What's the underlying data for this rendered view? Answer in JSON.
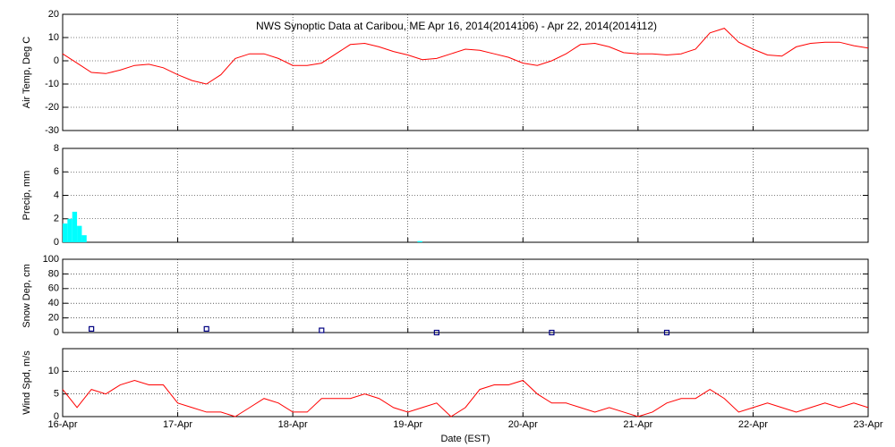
{
  "chart_data": [
    {
      "type": "line",
      "title": "NWS Synoptic Data at Caribou, ME   Apr 16, 2014(2014106) - Apr 22, 2014(2014112)",
      "ylabel": "Air Temp, Deg C",
      "xlim": [
        0,
        168
      ],
      "xticks": [
        0,
        24,
        48,
        72,
        96,
        120,
        144,
        168
      ],
      "ylim": [
        -30,
        20
      ],
      "yticks": [
        -30,
        -20,
        -10,
        0,
        10,
        20
      ],
      "grid": true,
      "series": [
        {
          "color": "#ff0000",
          "x": [
            0,
            3,
            6,
            9,
            12,
            15,
            18,
            21,
            24,
            27,
            30,
            33,
            36,
            39,
            42,
            45,
            48,
            51,
            54,
            57,
            60,
            63,
            66,
            69,
            72,
            75,
            78,
            81,
            84,
            87,
            90,
            93,
            96,
            99,
            102,
            105,
            108,
            111,
            114,
            117,
            120,
            123,
            126,
            129,
            132,
            135,
            138,
            141,
            144,
            147,
            150,
            153,
            156,
            159,
            162,
            165,
            168
          ],
          "values": [
            3,
            -1,
            -5,
            -5.5,
            -4,
            -2,
            -1.5,
            -3,
            -6,
            -8.5,
            -10,
            -6,
            1,
            3,
            3,
            1,
            -2,
            -2,
            -1,
            3,
            7,
            7.5,
            6,
            4,
            2.5,
            0.5,
            1,
            3,
            5,
            4.5,
            3,
            1.5,
            -1,
            -2,
            0,
            3,
            7,
            7.5,
            6,
            3.5,
            3,
            3,
            2.5,
            3,
            5,
            12,
            14,
            8,
            5,
            2.5,
            2,
            6,
            7.5,
            8,
            8,
            6.5,
            5.5
          ]
        }
      ]
    },
    {
      "type": "bar",
      "ylabel": "Precip, mm",
      "xlim": [
        0,
        168
      ],
      "xticks": [
        0,
        24,
        48,
        72,
        96,
        120,
        144,
        168
      ],
      "ylim": [
        0,
        8
      ],
      "yticks": [
        0,
        2,
        4,
        6,
        8
      ],
      "grid": true,
      "color": "#00ffff",
      "x": [
        0,
        1,
        2,
        3,
        4,
        74
      ],
      "values": [
        1.6,
        2.0,
        2.6,
        1.4,
        0.6,
        0.1
      ]
    },
    {
      "type": "scatter",
      "ylabel": "Snow Dep, cm",
      "xlim": [
        0,
        168
      ],
      "xticks": [
        0,
        24,
        48,
        72,
        96,
        120,
        144,
        168
      ],
      "ylim": [
        0,
        100
      ],
      "yticks": [
        0,
        20,
        40,
        60,
        80,
        100
      ],
      "grid": true,
      "color": "#000080",
      "x": [
        6,
        30,
        54,
        78,
        102,
        126
      ],
      "values": [
        5,
        5,
        3,
        0,
        0,
        0
      ]
    },
    {
      "type": "line",
      "ylabel": "Wind Spd, m/s",
      "xlabel": "Date (EST)",
      "xlim": [
        0,
        168
      ],
      "xticks": [
        {
          "value": 0,
          "label": "16-Apr"
        },
        {
          "value": 24,
          "label": "17-Apr"
        },
        {
          "value": 48,
          "label": "18-Apr"
        },
        {
          "value": 72,
          "label": "19-Apr"
        },
        {
          "value": 96,
          "label": "20-Apr"
        },
        {
          "value": 120,
          "label": "21-Apr"
        },
        {
          "value": 144,
          "label": "22-Apr"
        },
        {
          "value": 168,
          "label": "23-Apr"
        }
      ],
      "ylim": [
        0,
        15
      ],
      "yticks": [
        0,
        5,
        10
      ],
      "grid": true,
      "series": [
        {
          "color": "#ff0000",
          "x": [
            0,
            3,
            6,
            9,
            12,
            15,
            18,
            21,
            24,
            27,
            30,
            33,
            36,
            39,
            42,
            45,
            48,
            51,
            54,
            57,
            60,
            63,
            66,
            69,
            72,
            75,
            78,
            81,
            84,
            87,
            90,
            93,
            96,
            99,
            102,
            105,
            108,
            111,
            114,
            117,
            120,
            123,
            126,
            129,
            132,
            135,
            138,
            141,
            144,
            147,
            150,
            153,
            156,
            159,
            162,
            165,
            168
          ],
          "values": [
            6,
            2,
            6,
            5,
            7,
            8,
            7,
            7,
            3,
            2,
            1,
            1,
            0,
            2,
            4,
            3,
            1,
            1,
            4,
            4,
            4,
            5,
            4,
            2,
            1,
            2,
            3,
            0,
            2,
            6,
            7,
            7,
            8,
            5,
            3,
            3,
            2,
            1,
            2,
            1,
            0,
            1,
            3,
            4,
            4,
            6,
            4,
            1,
            2,
            3,
            2,
            1,
            2,
            3,
            2,
            3,
            2
          ]
        }
      ]
    }
  ]
}
